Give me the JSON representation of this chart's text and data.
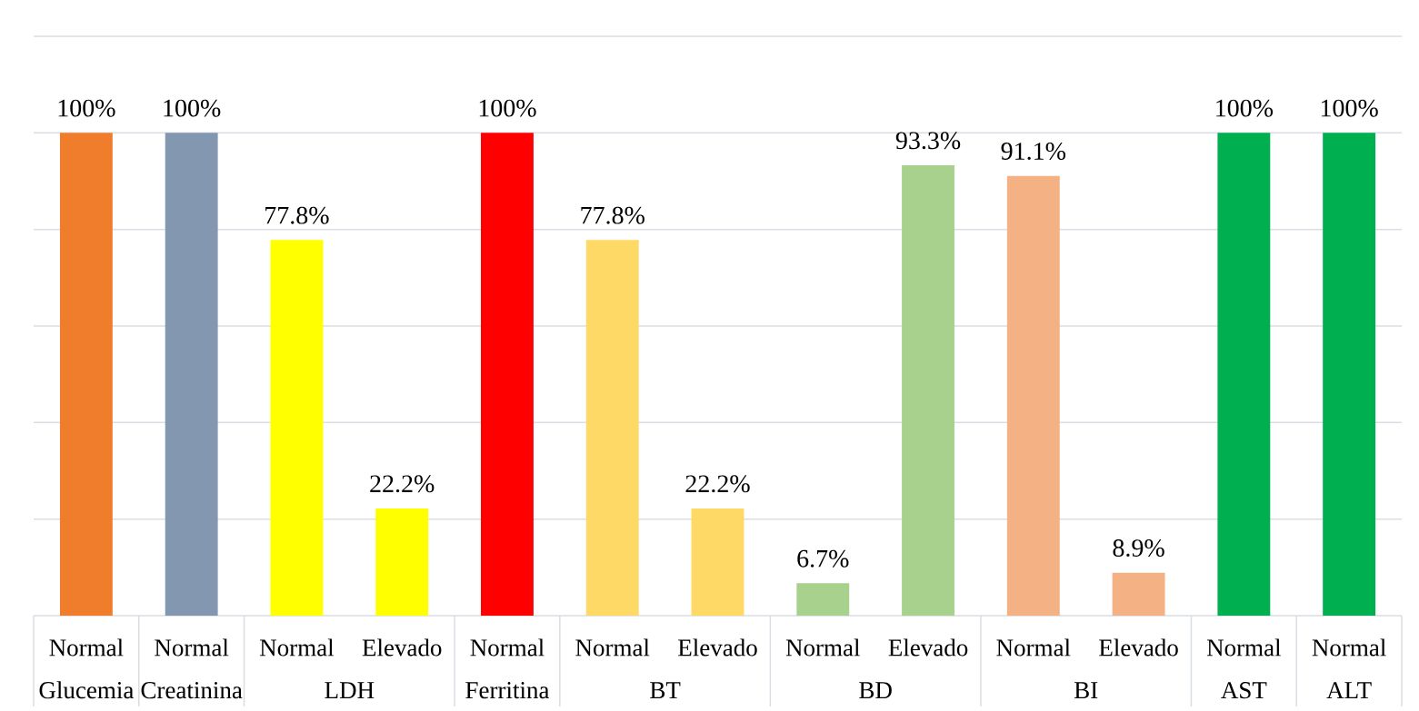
{
  "chart_data": {
    "type": "bar",
    "categories": [
      "Normal",
      "Normal",
      "Normal",
      "Elevado",
      "Normal",
      "Normal",
      "Elevado",
      "Normal",
      "Elevado",
      "Normal",
      "Elevado",
      "Normal",
      "Normal"
    ],
    "series": [
      {
        "name": "Glucemia",
        "color": "#F07D2C",
        "values": [
          100,
          null,
          null,
          null,
          null,
          null,
          null,
          null,
          null,
          null,
          null,
          null,
          null
        ],
        "value_labels": [
          "100%",
          null,
          null,
          null,
          null,
          null,
          null,
          null,
          null,
          null,
          null,
          null,
          null
        ]
      },
      {
        "name": "Creatinina",
        "color": "#8497B0",
        "values": [
          null,
          100,
          null,
          null,
          null,
          null,
          null,
          null,
          null,
          null,
          null,
          null,
          null
        ],
        "value_labels": [
          null,
          "100%",
          null,
          null,
          null,
          null,
          null,
          null,
          null,
          null,
          null,
          null,
          null
        ]
      },
      {
        "name": "LDH",
        "color": "#FFFF00",
        "values": [
          null,
          null,
          77.8,
          22.2,
          null,
          null,
          null,
          null,
          null,
          null,
          null,
          null,
          null
        ],
        "value_labels": [
          null,
          null,
          "77.8%",
          "22.2%",
          null,
          null,
          null,
          null,
          null,
          null,
          null,
          null,
          null
        ]
      },
      {
        "name": "Ferritina",
        "color": "#FF0000",
        "values": [
          null,
          null,
          null,
          null,
          100,
          null,
          null,
          null,
          null,
          null,
          null,
          null,
          null
        ],
        "value_labels": [
          null,
          null,
          null,
          null,
          "100%",
          null,
          null,
          null,
          null,
          null,
          null,
          null,
          null
        ]
      },
      {
        "name": "BT",
        "color": "#FFD966",
        "values": [
          null,
          null,
          null,
          null,
          null,
          77.8,
          22.2,
          null,
          null,
          null,
          null,
          null,
          null
        ],
        "value_labels": [
          null,
          null,
          null,
          null,
          null,
          "77.8%",
          "22.2%",
          null,
          null,
          null,
          null,
          null,
          null
        ]
      },
      {
        "name": "BD",
        "color": "#A9D18E",
        "values": [
          null,
          null,
          null,
          null,
          null,
          null,
          null,
          6.7,
          93.3,
          null,
          null,
          null,
          null
        ],
        "value_labels": [
          null,
          null,
          null,
          null,
          null,
          null,
          null,
          "6.7%",
          "93.3%",
          null,
          null,
          null,
          null
        ]
      },
      {
        "name": "BI",
        "color": "#F4B183",
        "values": [
          null,
          null,
          null,
          null,
          null,
          null,
          null,
          null,
          null,
          91.1,
          8.9,
          null,
          null
        ],
        "value_labels": [
          null,
          null,
          null,
          null,
          null,
          null,
          null,
          null,
          null,
          "91.1%",
          "8.9%",
          null,
          null
        ]
      },
      {
        "name": "AST",
        "color": "#00B050",
        "values": [
          null,
          null,
          null,
          null,
          null,
          null,
          null,
          null,
          null,
          null,
          null,
          100,
          null
        ],
        "value_labels": [
          null,
          null,
          null,
          null,
          null,
          null,
          null,
          null,
          null,
          null,
          null,
          "100%",
          null
        ]
      },
      {
        "name": "ALT",
        "color": "#00B050",
        "values": [
          null,
          null,
          null,
          null,
          null,
          null,
          null,
          null,
          null,
          null,
          null,
          null,
          100
        ],
        "value_labels": [
          null,
          null,
          null,
          null,
          null,
          null,
          null,
          null,
          null,
          null,
          null,
          null,
          "100%"
        ]
      }
    ],
    "ylim": [
      0,
      120
    ],
    "yticks": [
      {
        "value": 0,
        "label": null
      },
      {
        "value": 20,
        "label": null
      },
      {
        "value": 40,
        "label": null
      },
      {
        "value": 60,
        "label": null
      },
      {
        "value": 80,
        "label": null
      },
      {
        "value": 100,
        "label": null
      },
      {
        "value": 120,
        "label": null
      }
    ],
    "grid": "y",
    "tick_labels": "x"
  }
}
